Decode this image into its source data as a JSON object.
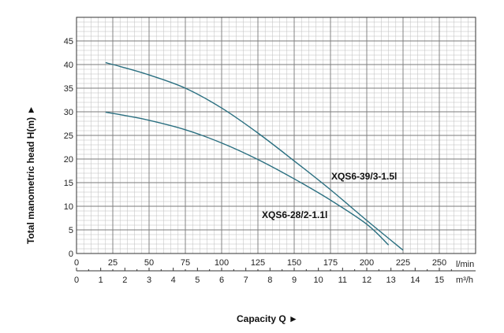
{
  "chart_data": {
    "type": "line",
    "xlabel": "Capacity Q ►",
    "ylabel": "Total manometric head H(m) ►",
    "x_unit": "l/min",
    "x2_unit": "m³/h",
    "xlim": [
      0,
      275
    ],
    "ylim": [
      0,
      50
    ],
    "x_ticks": [
      "0",
      "25",
      "50",
      "75",
      "100",
      "125",
      "150",
      "175",
      "200",
      "225",
      "250"
    ],
    "x2_ticks": [
      "0",
      "1",
      "2",
      "3",
      "4",
      "5",
      "6",
      "7",
      "8",
      "9",
      "10",
      "11",
      "12",
      "13",
      "14",
      "15"
    ],
    "y_ticks": [
      "0",
      "5",
      "10",
      "15",
      "20",
      "25",
      "30",
      "35",
      "40",
      "45"
    ],
    "grid": true,
    "series": [
      {
        "name": "XQS6-39/3-1.5l",
        "x": [
          20,
          30,
          50,
          75,
          100,
          125,
          150,
          175,
          200,
          225
        ],
        "y": [
          40.4,
          39.6,
          37.8,
          35.0,
          30.8,
          25.5,
          19.6,
          13.5,
          7.0,
          0.7
        ]
      },
      {
        "name": "XQS6-28/2-1.1l",
        "x": [
          20,
          30,
          50,
          75,
          100,
          125,
          150,
          175,
          200,
          215
        ],
        "y": [
          29.9,
          29.4,
          28.2,
          26.2,
          23.4,
          19.9,
          15.8,
          11.3,
          6.2,
          1.8
        ]
      }
    ]
  }
}
